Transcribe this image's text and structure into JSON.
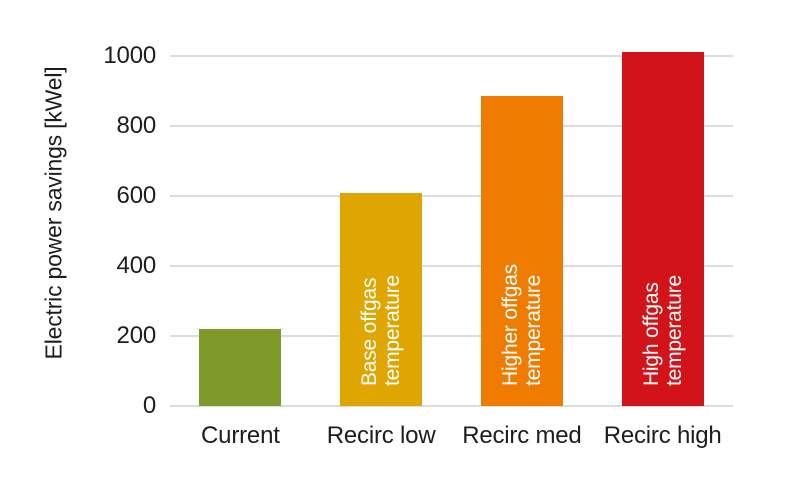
{
  "chart_data": {
    "type": "bar",
    "title": "",
    "xlabel": "",
    "ylabel": "Electric power savings [kWel]",
    "categories": [
      "Current",
      "Recirc low",
      "Recirc med",
      "Recirc high"
    ],
    "values": [
      220,
      608,
      885,
      1012
    ],
    "bar_labels": [
      "",
      "Base offgas\ntemperature",
      "Higher offgas\ntemperature",
      "High offgas\ntemperature"
    ],
    "bar_colors": [
      "#80992b",
      "#dfa602",
      "#ef7c00",
      "#d2141a"
    ],
    "yticks": [
      0,
      200,
      400,
      600,
      800,
      1000
    ],
    "ylim": [
      0,
      1100
    ],
    "grid": "horizontal",
    "legend": "none",
    "colors": {
      "background": "#ffffff",
      "gridline": "#dcdcdc",
      "axis_text": "#1d1d1b",
      "bar_label_text": "#ffffff"
    }
  }
}
